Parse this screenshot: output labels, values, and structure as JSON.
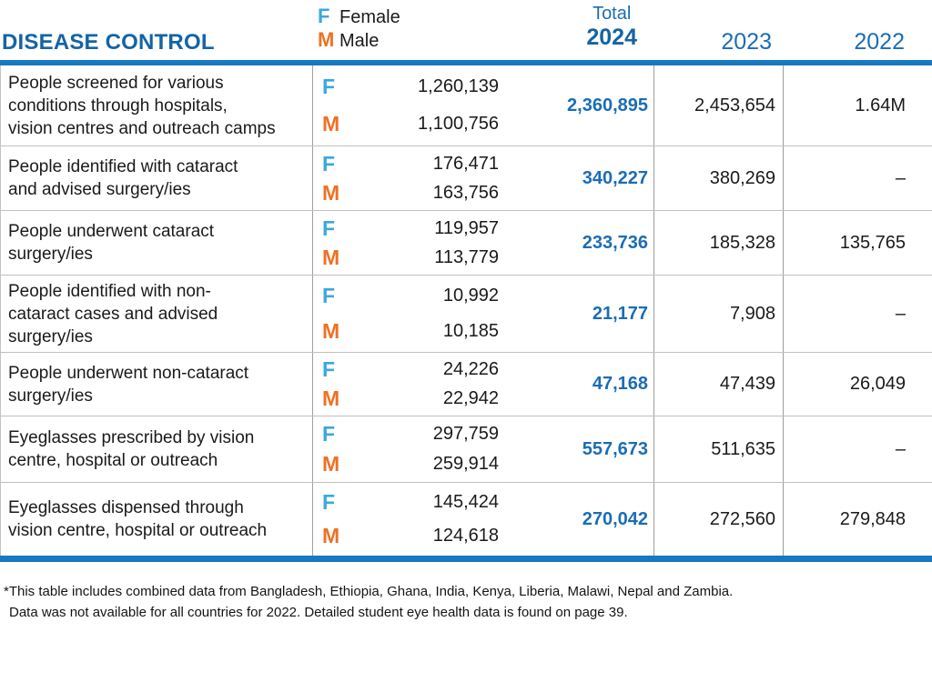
{
  "header": {
    "title": "DISEASE CONTROL",
    "legend": {
      "female_symbol": "F",
      "female_label": "Female",
      "male_symbol": "M",
      "male_label": "Male"
    },
    "columns": {
      "total_label": "Total",
      "year_2024": "2024",
      "year_2023": "2023",
      "year_2022": "2022"
    }
  },
  "rows": [
    {
      "label": "People screened for various\nconditions through hospitals,\nvision centres and outreach camps",
      "f": "1,260,139",
      "m": "1,100,756",
      "total": "2,360,895",
      "y2023": "2,453,654",
      "y2022": "1.64M"
    },
    {
      "label": "People identified with cataract\nand advised surgery/ies",
      "f": "176,471",
      "m": "163,756",
      "total": "340,227",
      "y2023": "380,269",
      "y2022": "–"
    },
    {
      "label": "People underwent cataract\nsurgery/ies",
      "f": "119,957",
      "m": "113,779",
      "total": "233,736",
      "y2023": "185,328",
      "y2022": "135,765"
    },
    {
      "label": "People identified with non-\ncataract cases and advised\nsurgery/ies",
      "f": "10,992",
      "m": "10,185",
      "total": "21,177",
      "y2023": "7,908",
      "y2022": "–"
    },
    {
      "label": "People underwent non-cataract\nsurgery/ies",
      "f": "24,226",
      "m": "22,942",
      "total": "47,168",
      "y2023": "47,439",
      "y2022": "26,049"
    },
    {
      "label": "Eyeglasses prescribed by vision\ncentre, hospital or outreach",
      "f": "297,759",
      "m": "259,914",
      "total": "557,673",
      "y2023": "511,635",
      "y2022": "–"
    },
    {
      "label": "Eyeglasses dispensed through\nvision centre, hospital or outreach",
      "f": "145,424",
      "m": "124,618",
      "total": "270,042",
      "y2023": "272,560",
      "y2022": "279,848"
    }
  ],
  "footnotes": [
    "*This table includes combined data from Bangladesh, Ethiopia, Ghana, India, Kenya, Liberia, Malawi, Nepal and Zambia.",
    "Data was not available for all countries for 2022. Detailed student eye health data is found on page 39."
  ],
  "colors": {
    "title_blue": "#1464a4",
    "rule_blue": "#1779c0",
    "female_blue": "#3ba7e0",
    "male_orange": "#ee7124",
    "total_blue": "#1a6db6",
    "border_gray": "#9e9e9e"
  }
}
